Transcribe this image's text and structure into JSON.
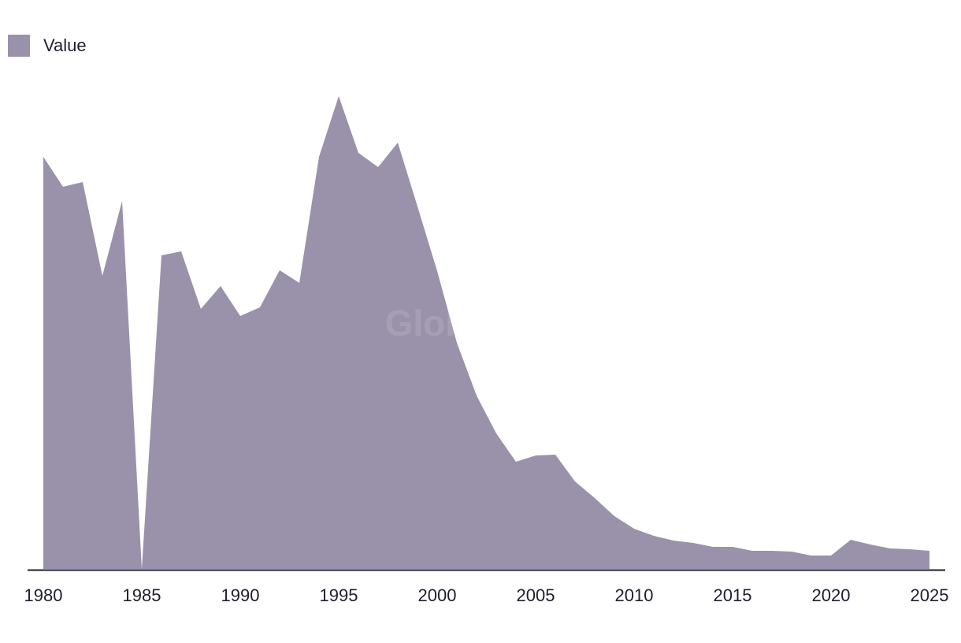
{
  "watermark": "GlobalData",
  "colors": {
    "area": "#9a92aa",
    "axis": "#1e1e2e",
    "text": "#1e1e2e"
  },
  "chart_data": {
    "type": "area",
    "title": "",
    "xlabel": "",
    "ylabel": "",
    "legend": {
      "position": "top-left",
      "entries": [
        "Value"
      ]
    },
    "grid": false,
    "x": [
      1980,
      1981,
      1982,
      1983,
      1984,
      1985,
      1986,
      1987,
      1988,
      1989,
      1990,
      1991,
      1992,
      1993,
      1994,
      1995,
      1996,
      1997,
      1998,
      1999,
      2000,
      2001,
      2002,
      2003,
      2004,
      2005,
      2006,
      2007,
      2008,
      2009,
      2010,
      2011,
      2012,
      2013,
      2014,
      2015,
      2016,
      2017,
      2018,
      2019,
      2020,
      2021,
      2022,
      2023,
      2024,
      2025
    ],
    "x_ticks": [
      "1980",
      "1985",
      "1990",
      "1995",
      "2000",
      "2005",
      "2010",
      "2015",
      "2020",
      "2025"
    ],
    "ylim": [
      0,
      660
    ],
    "series": [
      {
        "name": "Value",
        "color": "#9a92aa",
        "values": [
          523,
          485,
          491,
          372,
          467,
          0,
          398,
          403,
          330,
          359,
          321,
          332,
          379,
          363,
          523,
          600,
          528,
          510,
          541,
          460,
          378,
          287,
          220,
          172,
          136,
          144,
          145,
          111,
          90,
          67,
          51,
          42,
          36,
          33,
          28,
          28,
          23,
          23,
          22,
          17,
          17,
          37,
          31,
          26,
          25,
          23
        ]
      }
    ]
  }
}
